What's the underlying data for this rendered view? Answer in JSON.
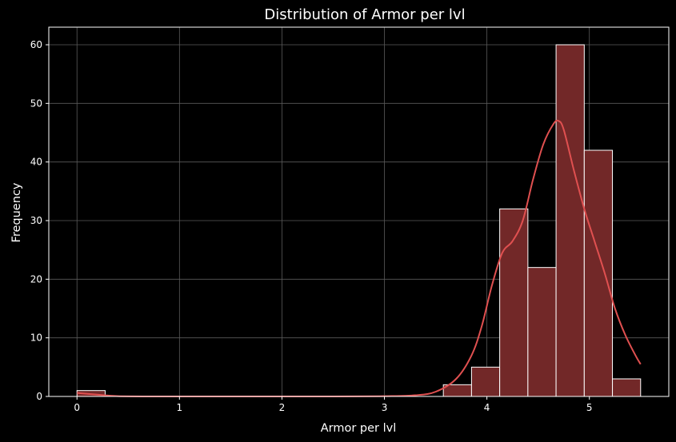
{
  "chart_data": {
    "type": "bar",
    "title": "Distribution of Armor per lvl",
    "xlabel": "Armor per lvl",
    "ylabel": "Frequency",
    "xlim": [
      -0.275,
      5.775
    ],
    "ylim": [
      0,
      63
    ],
    "xticks": [
      0,
      1,
      2,
      3,
      4,
      5
    ],
    "yticks": [
      0,
      10,
      20,
      30,
      40,
      50,
      60
    ],
    "grid": true,
    "bins": [
      {
        "x0": 0.0,
        "x1": 0.275,
        "count": 1
      },
      {
        "x0": 0.275,
        "x1": 3.575,
        "count": 0
      },
      {
        "x0": 3.575,
        "x1": 3.85,
        "count": 2
      },
      {
        "x0": 3.85,
        "x1": 4.125,
        "count": 5
      },
      {
        "x0": 4.125,
        "x1": 4.4,
        "count": 32
      },
      {
        "x0": 4.4,
        "x1": 4.675,
        "count": 22
      },
      {
        "x0": 4.675,
        "x1": 4.95,
        "count": 60
      },
      {
        "x0": 4.95,
        "x1": 5.225,
        "count": 42
      },
      {
        "x0": 5.225,
        "x1": 5.5,
        "count": 3
      }
    ],
    "kde": {
      "x": [
        0,
        0.2,
        0.4,
        0.8,
        1.5,
        2.5,
        3.0,
        3.3,
        3.5,
        3.7,
        3.85,
        3.95,
        4.05,
        4.15,
        4.25,
        4.35,
        4.45,
        4.55,
        4.65,
        4.7,
        4.75,
        4.85,
        4.95,
        5.05,
        5.15,
        5.25,
        5.35,
        5.45,
        5.5
      ],
      "y": [
        0.6,
        0.3,
        0.05,
        0,
        0,
        0,
        0.05,
        0.2,
        0.8,
        3,
        7,
        12,
        19,
        24.5,
        26.5,
        30,
        37,
        43,
        46.5,
        47,
        45.5,
        38.5,
        32,
        26.5,
        21,
        15,
        10.5,
        7,
        5.5
      ]
    },
    "colors": {
      "background": "#000000",
      "bar_fill": "#722828",
      "bar_edge": "#ffffff",
      "kde_line": "#e05050",
      "grid": "#5a5a5a",
      "axes": "#ffffff",
      "text": "#ffffff"
    }
  }
}
